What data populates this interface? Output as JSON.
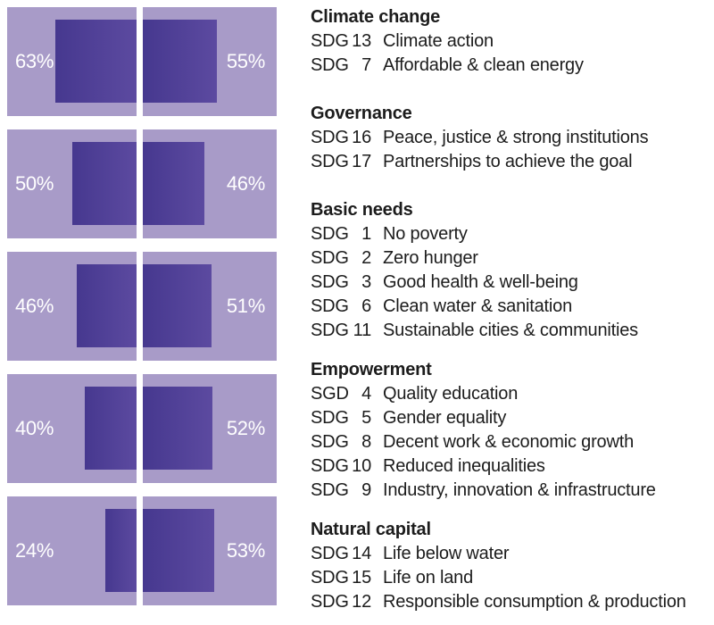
{
  "colors": {
    "panel_light_purple": "#a89bc8",
    "bar_gradient_start": "#46388f",
    "bar_gradient_end": "#5c4aa0",
    "percent_label": "#ffffff",
    "text": "#1c1c1c",
    "background": "#ffffff"
  },
  "chart_data": {
    "type": "bar",
    "orientation": "paired horizontal panels, left bar anchored to center-right edge, right bar anchored to center-left edge",
    "unit": "%",
    "value_range": [
      0,
      100
    ],
    "grid": false,
    "legend": "none (category descriptions listed in right-hand text column)",
    "categories": [
      "Climate change",
      "Governance",
      "Basic needs",
      "Empowerment",
      "Natural capital"
    ],
    "series": [
      {
        "name": "left",
        "values": [
          63,
          50,
          46,
          40,
          24
        ]
      },
      {
        "name": "right",
        "values": [
          55,
          46,
          51,
          52,
          53
        ]
      }
    ],
    "rows": [
      {
        "category": "Climate change",
        "left_label": "63%",
        "right_label": "55%"
      },
      {
        "category": "Governance",
        "left_label": "50%",
        "right_label": "46%"
      },
      {
        "category": "Basic needs",
        "left_label": "46%",
        "right_label": "51%"
      },
      {
        "category": "Empowerment",
        "left_label": "40%",
        "right_label": "52%"
      },
      {
        "category": "Natural capital",
        "left_label": "24%",
        "right_label": "53%"
      }
    ]
  },
  "legend": {
    "groups": [
      {
        "title": "Climate change",
        "items": [
          {
            "tag": "SDG",
            "num": "13",
            "label": "Climate action"
          },
          {
            "tag": "SDG",
            "num": "7",
            "label": "Affordable & clean energy"
          }
        ]
      },
      {
        "title": "Governance",
        "items": [
          {
            "tag": "SDG",
            "num": "16",
            "label": "Peace, justice & strong institutions"
          },
          {
            "tag": "SDG",
            "num": "17",
            "label": "Partnerships to achieve the goal"
          }
        ]
      },
      {
        "title": "Basic needs",
        "items": [
          {
            "tag": "SDG",
            "num": "1",
            "label": "No poverty"
          },
          {
            "tag": "SDG",
            "num": "2",
            "label": "Zero hunger"
          },
          {
            "tag": "SDG",
            "num": "3",
            "label": "Good health & well-being"
          },
          {
            "tag": "SDG",
            "num": "6",
            "label": "Clean water & sanitation"
          },
          {
            "tag": "SDG",
            "num": "11",
            "label": "Sustainable cities & communities"
          }
        ]
      },
      {
        "title": "Empowerment",
        "items": [
          {
            "tag": "SGD",
            "num": "4",
            "label": "Quality education"
          },
          {
            "tag": "SDG",
            "num": "5",
            "label": "Gender equality"
          },
          {
            "tag": "SDG",
            "num": "8",
            "label": "Decent work & economic growth"
          },
          {
            "tag": "SDG",
            "num": "10",
            "label": "Reduced inequalities"
          },
          {
            "tag": "SDG",
            "num": "9",
            "label": "Industry, innovation & infrastructure"
          }
        ]
      },
      {
        "title": "Natural capital",
        "items": [
          {
            "tag": "SDG",
            "num": "14",
            "label": "Life below water"
          },
          {
            "tag": "SDG",
            "num": "15",
            "label": "Life on land"
          },
          {
            "tag": "SDG",
            "num": "12",
            "label": "Responsible consumption & production"
          }
        ]
      }
    ]
  }
}
